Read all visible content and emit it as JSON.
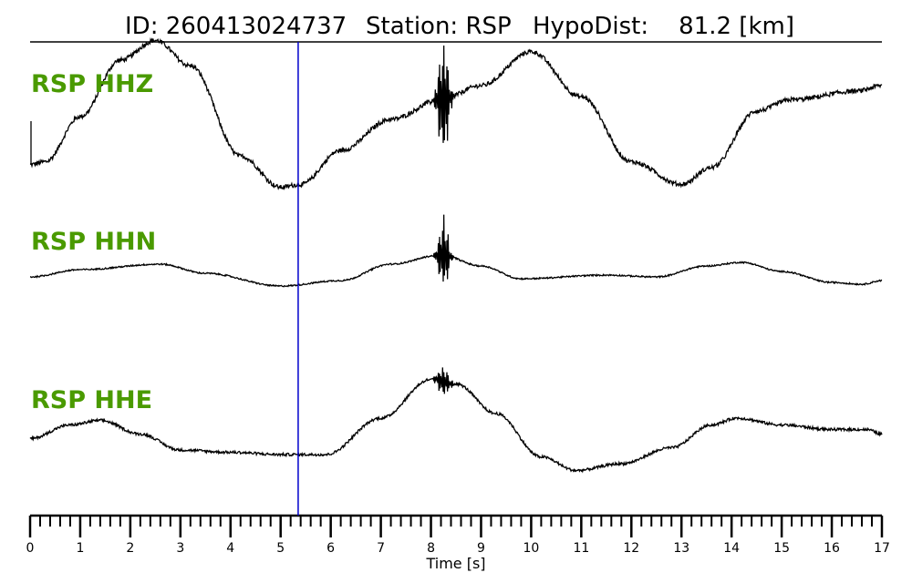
{
  "header": {
    "id_text": "ID: 260413024737",
    "station_text": "Station: RSP",
    "dist_text": "HypoDist:    81.2 [km]"
  },
  "colors": {
    "label": "#4a9a00",
    "trace": "#000000",
    "marker": "#0000cc"
  },
  "chart_data": {
    "type": "line",
    "xlabel": "Time [s]",
    "xlim": [
      0,
      17
    ],
    "x_major_ticks": [
      0,
      1,
      2,
      3,
      4,
      5,
      6,
      7,
      8,
      9,
      10,
      11,
      12,
      13,
      14,
      15,
      16,
      17
    ],
    "x_minor_step": 0.2,
    "marker_time": 5.35,
    "series": [
      {
        "name": "RSP HHZ",
        "keypoints": [
          [
            0,
            0.15
          ],
          [
            0.3,
            0.2
          ],
          [
            1.0,
            1.0
          ],
          [
            1.8,
            2.0
          ],
          [
            2.5,
            2.35
          ],
          [
            3.2,
            1.9
          ],
          [
            4.2,
            0.3
          ],
          [
            5.0,
            -0.25
          ],
          [
            5.4,
            -0.2
          ],
          [
            6.2,
            0.4
          ],
          [
            7.2,
            0.95
          ],
          [
            8.2,
            1.3
          ],
          [
            9.0,
            1.55
          ],
          [
            10.0,
            2.15
          ],
          [
            11.0,
            1.35
          ],
          [
            12.0,
            0.2
          ],
          [
            13.0,
            -0.2
          ],
          [
            13.6,
            0.1
          ],
          [
            14.5,
            1.1
          ],
          [
            15.2,
            1.3
          ],
          [
            16.5,
            1.45
          ],
          [
            17.0,
            1.55
          ]
        ],
        "noise": 0.04,
        "bursts": [
          {
            "t": 8.25,
            "amp": 1.1,
            "width": 0.18
          }
        ]
      },
      {
        "name": "RSP HHN",
        "keypoints": [
          [
            0,
            0.6
          ],
          [
            1.0,
            0.8
          ],
          [
            2.6,
            0.95
          ],
          [
            3.5,
            0.7
          ],
          [
            5.0,
            0.35
          ],
          [
            6.2,
            0.5
          ],
          [
            7.2,
            0.95
          ],
          [
            8.2,
            1.2
          ],
          [
            9.0,
            0.9
          ],
          [
            9.8,
            0.55
          ],
          [
            11.5,
            0.65
          ],
          [
            12.5,
            0.6
          ],
          [
            13.5,
            0.9
          ],
          [
            14.2,
            1.0
          ],
          [
            15.0,
            0.75
          ],
          [
            16.0,
            0.45
          ],
          [
            16.6,
            0.4
          ],
          [
            17.0,
            0.5
          ]
        ],
        "noise": 0.02,
        "bursts": [
          {
            "t": 8.25,
            "amp": 1.2,
            "width": 0.15
          }
        ]
      },
      {
        "name": "RSP HHE",
        "keypoints": [
          [
            0,
            0.65
          ],
          [
            0.8,
            0.95
          ],
          [
            1.4,
            1.05
          ],
          [
            2.2,
            0.75
          ],
          [
            3.0,
            0.4
          ],
          [
            4.0,
            0.35
          ],
          [
            5.0,
            0.3
          ],
          [
            5.9,
            0.3
          ],
          [
            7.0,
            1.1
          ],
          [
            8.0,
            1.95
          ],
          [
            8.5,
            1.85
          ],
          [
            9.3,
            1.2
          ],
          [
            10.2,
            0.25
          ],
          [
            10.9,
            -0.05
          ],
          [
            11.8,
            0.1
          ],
          [
            12.8,
            0.45
          ],
          [
            13.6,
            0.95
          ],
          [
            14.1,
            1.1
          ],
          [
            15.0,
            0.95
          ],
          [
            16.0,
            0.85
          ],
          [
            16.7,
            0.85
          ],
          [
            17.0,
            0.75
          ]
        ],
        "noise": 0.03,
        "bursts": [
          {
            "t": 8.25,
            "amp": 0.35,
            "width": 0.2
          }
        ]
      }
    ]
  }
}
